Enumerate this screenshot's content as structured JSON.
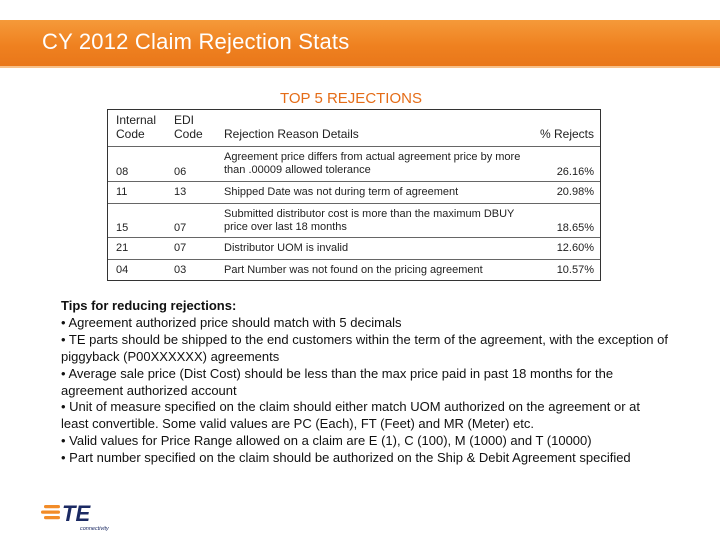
{
  "header": {
    "title": "CY 2012 Claim Rejection Stats",
    "accent_color": "#ef8120"
  },
  "table": {
    "title": "TOP 5 REJECTIONS",
    "title_color": "#e46c17",
    "headers": {
      "internal_code": "Internal Code",
      "edi_code": "EDI Code",
      "reason": "Rejection Reason Details",
      "pct": "% Rejects"
    },
    "rows": [
      {
        "internal_code": "08",
        "edi_code": "06",
        "reason": "Agreement price differs from actual agreement price by more than .00009 allowed tolerance",
        "pct": "26.16%"
      },
      {
        "internal_code": "11",
        "edi_code": "13",
        "reason": "Shipped Date was not during term of agreement",
        "pct": "20.98%"
      },
      {
        "internal_code": "15",
        "edi_code": "07",
        "reason": "Submitted distributor cost is more than the maximum DBUY price over last 18 months",
        "pct": "18.65%"
      },
      {
        "internal_code": "21",
        "edi_code": "07",
        "reason": "Distributor UOM is invalid",
        "pct": "12.60%"
      },
      {
        "internal_code": "04",
        "edi_code": "03",
        "reason": "Part Number was not found on the pricing agreement",
        "pct": "10.57%"
      }
    ]
  },
  "tips": {
    "heading": "Tips for reducing rejections:",
    "items": [
      "• Agreement authorized price should match with 5 decimals",
      "• TE parts should be shipped to the end customers within the term of the agreement, with the exception of piggyback (P00XXXXXX) agreements",
      "• Average sale price (Dist Cost) should be less than the max price paid in past 18 months for the agreement authorized account",
      "• Unit of measure specified on the claim should either match UOM authorized on the agreement or at least convertible. Some valid values are PC (Each), FT (Feet) and MR (Meter) etc.",
      "• Valid values for Price Range allowed on a claim are E (1), C (100), M (1000) and T (10000)",
      "• Part number specified on the claim should be authorized on the Ship & Debit Agreement specified"
    ]
  },
  "logo": {
    "text": "TE",
    "subtext": "connectivity",
    "color": "#f28c28",
    "text_color": "#1b2a63",
    "icon": "te-logo-icon"
  }
}
